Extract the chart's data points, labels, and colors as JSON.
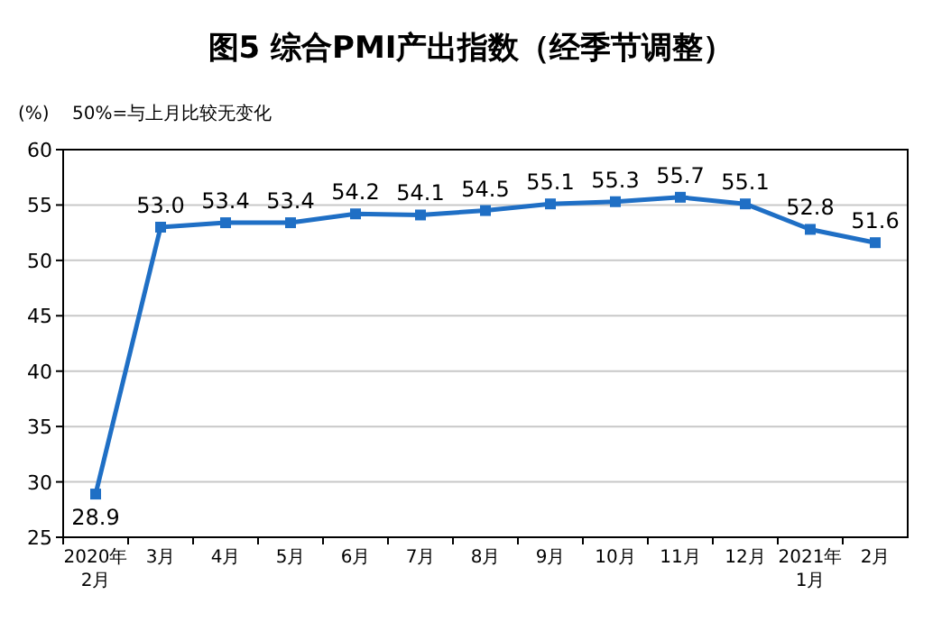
{
  "chart_data": {
    "type": "line",
    "title": "图5  综合PMI产出指数（经季节调整）",
    "ylabel": "(%)",
    "annotations": [
      "50%=与上月比较无变化"
    ],
    "categories": [
      "2020年\n2月",
      "3月",
      "4月",
      "5月",
      "6月",
      "7月",
      "8月",
      "9月",
      "10月",
      "11月",
      "12月",
      "2021年\n1月",
      "2月"
    ],
    "series": [
      {
        "color": "#1f6fc5",
        "values": [
          28.9,
          53.0,
          53.4,
          53.4,
          54.2,
          54.1,
          54.5,
          55.1,
          55.3,
          55.7,
          55.1,
          52.8,
          51.6
        ],
        "value_labels": [
          "28.9",
          "53.0",
          "53.4",
          "53.4",
          "54.2",
          "54.1",
          "54.5",
          "55.1",
          "55.3",
          "55.7",
          "55.1",
          "52.8",
          "51.6"
        ]
      }
    ],
    "ylim": [
      25,
      60
    ],
    "yticks": [
      25,
      30,
      35,
      40,
      45,
      50,
      55,
      60
    ],
    "grid": "y",
    "marker": "square",
    "line_style": "solid"
  }
}
